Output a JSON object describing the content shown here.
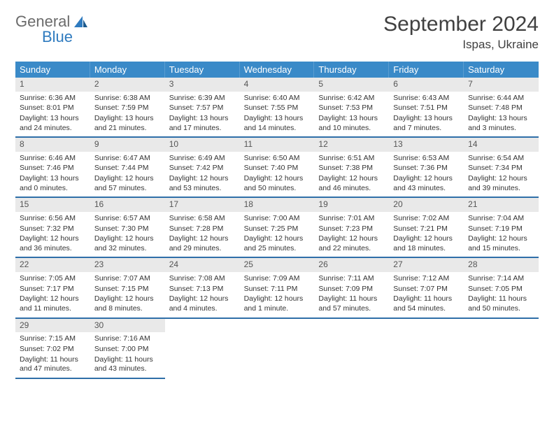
{
  "logo": {
    "general": "General",
    "blue": "Blue"
  },
  "title": {
    "month": "September 2024",
    "location": "Ispas, Ukraine"
  },
  "colors": {
    "header_bg": "#3a8ac8",
    "header_text": "#ffffff",
    "daynum_bg": "#e9e9e9",
    "border": "#2f6fa8",
    "logo_gray": "#6b6b6b",
    "logo_blue": "#2f7bbf"
  },
  "weekdays": [
    "Sunday",
    "Monday",
    "Tuesday",
    "Wednesday",
    "Thursday",
    "Friday",
    "Saturday"
  ],
  "days": [
    {
      "n": "1",
      "sr": "6:36 AM",
      "ss": "8:01 PM",
      "dh": "13",
      "dm": "24"
    },
    {
      "n": "2",
      "sr": "6:38 AM",
      "ss": "7:59 PM",
      "dh": "13",
      "dm": "21"
    },
    {
      "n": "3",
      "sr": "6:39 AM",
      "ss": "7:57 PM",
      "dh": "13",
      "dm": "17"
    },
    {
      "n": "4",
      "sr": "6:40 AM",
      "ss": "7:55 PM",
      "dh": "13",
      "dm": "14"
    },
    {
      "n": "5",
      "sr": "6:42 AM",
      "ss": "7:53 PM",
      "dh": "13",
      "dm": "10"
    },
    {
      "n": "6",
      "sr": "6:43 AM",
      "ss": "7:51 PM",
      "dh": "13",
      "dm": "7"
    },
    {
      "n": "7",
      "sr": "6:44 AM",
      "ss": "7:48 PM",
      "dh": "13",
      "dm": "3"
    },
    {
      "n": "8",
      "sr": "6:46 AM",
      "ss": "7:46 PM",
      "dh": "13",
      "dm": "0"
    },
    {
      "n": "9",
      "sr": "6:47 AM",
      "ss": "7:44 PM",
      "dh": "12",
      "dm": "57"
    },
    {
      "n": "10",
      "sr": "6:49 AM",
      "ss": "7:42 PM",
      "dh": "12",
      "dm": "53"
    },
    {
      "n": "11",
      "sr": "6:50 AM",
      "ss": "7:40 PM",
      "dh": "12",
      "dm": "50"
    },
    {
      "n": "12",
      "sr": "6:51 AM",
      "ss": "7:38 PM",
      "dh": "12",
      "dm": "46"
    },
    {
      "n": "13",
      "sr": "6:53 AM",
      "ss": "7:36 PM",
      "dh": "12",
      "dm": "43"
    },
    {
      "n": "14",
      "sr": "6:54 AM",
      "ss": "7:34 PM",
      "dh": "12",
      "dm": "39"
    },
    {
      "n": "15",
      "sr": "6:56 AM",
      "ss": "7:32 PM",
      "dh": "12",
      "dm": "36"
    },
    {
      "n": "16",
      "sr": "6:57 AM",
      "ss": "7:30 PM",
      "dh": "12",
      "dm": "32"
    },
    {
      "n": "17",
      "sr": "6:58 AM",
      "ss": "7:28 PM",
      "dh": "12",
      "dm": "29"
    },
    {
      "n": "18",
      "sr": "7:00 AM",
      "ss": "7:25 PM",
      "dh": "12",
      "dm": "25"
    },
    {
      "n": "19",
      "sr": "7:01 AM",
      "ss": "7:23 PM",
      "dh": "12",
      "dm": "22"
    },
    {
      "n": "20",
      "sr": "7:02 AM",
      "ss": "7:21 PM",
      "dh": "12",
      "dm": "18"
    },
    {
      "n": "21",
      "sr": "7:04 AM",
      "ss": "7:19 PM",
      "dh": "12",
      "dm": "15"
    },
    {
      "n": "22",
      "sr": "7:05 AM",
      "ss": "7:17 PM",
      "dh": "12",
      "dm": "11"
    },
    {
      "n": "23",
      "sr": "7:07 AM",
      "ss": "7:15 PM",
      "dh": "12",
      "dm": "8"
    },
    {
      "n": "24",
      "sr": "7:08 AM",
      "ss": "7:13 PM",
      "dh": "12",
      "dm": "4"
    },
    {
      "n": "25",
      "sr": "7:09 AM",
      "ss": "7:11 PM",
      "dh": "12",
      "dm": "1"
    },
    {
      "n": "26",
      "sr": "7:11 AM",
      "ss": "7:09 PM",
      "dh": "11",
      "dm": "57"
    },
    {
      "n": "27",
      "sr": "7:12 AM",
      "ss": "7:07 PM",
      "dh": "11",
      "dm": "54"
    },
    {
      "n": "28",
      "sr": "7:14 AM",
      "ss": "7:05 PM",
      "dh": "11",
      "dm": "50"
    },
    {
      "n": "29",
      "sr": "7:15 AM",
      "ss": "7:02 PM",
      "dh": "11",
      "dm": "47"
    },
    {
      "n": "30",
      "sr": "7:16 AM",
      "ss": "7:00 PM",
      "dh": "11",
      "dm": "43"
    }
  ],
  "labels": {
    "sunrise": "Sunrise:",
    "sunset": "Sunset:",
    "daylight1": "Daylight:",
    "hours": "hours",
    "and": "and",
    "minutes": "minutes.",
    "minute": "minute."
  }
}
